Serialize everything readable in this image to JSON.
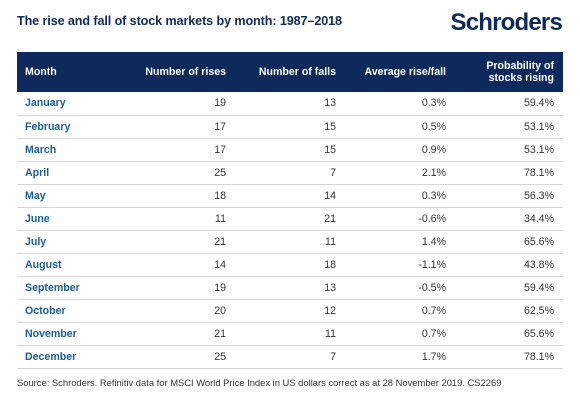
{
  "title": "The rise and fall of stock markets by month: 1987–2018",
  "logo": "Schroders",
  "table": {
    "headers": [
      "Month",
      "Number of rises",
      "Number of falls",
      "Average rise/fall",
      "Probability of stocks rising"
    ],
    "rows": [
      [
        "January",
        "19",
        "13",
        "0.3%",
        "59.4%"
      ],
      [
        "February",
        "17",
        "15",
        "0.5%",
        "53.1%"
      ],
      [
        "March",
        "17",
        "15",
        "0.9%",
        "53.1%"
      ],
      [
        "April",
        "25",
        "7",
        "2.1%",
        "78.1%"
      ],
      [
        "May",
        "18",
        "14",
        "0.3%",
        "56.3%"
      ],
      [
        "June",
        "11",
        "21",
        "-0.6%",
        "34.4%"
      ],
      [
        "July",
        "21",
        "11",
        "1.4%",
        "65.6%"
      ],
      [
        "August",
        "14",
        "18",
        "-1.1%",
        "43.8%"
      ],
      [
        "September",
        "19",
        "13",
        "-0.5%",
        "59.4%"
      ],
      [
        "October",
        "20",
        "12",
        "0.7%",
        "62.5%"
      ],
      [
        "November",
        "21",
        "11",
        "0.7%",
        "65.6%"
      ],
      [
        "December",
        "25",
        "7",
        "1.7%",
        "78.1%"
      ]
    ]
  },
  "source": "Source: Schroders. Refinitiv data for MSCI World Price Index in US dollars correct as at 28 November 2019. CS2269",
  "colors": {
    "navy": "#0e2a5c",
    "month_blue": "#1c5f9a",
    "divider": "#d6d6d6"
  }
}
